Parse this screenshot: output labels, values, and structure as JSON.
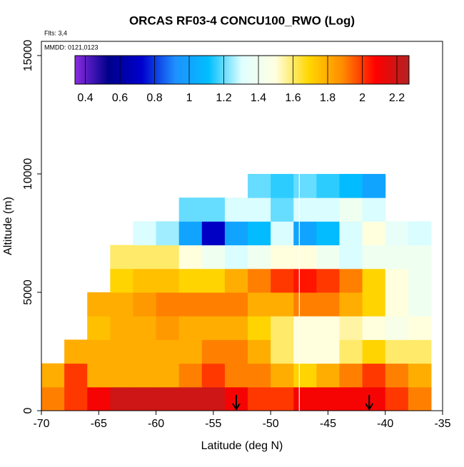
{
  "chart_data": {
    "type": "heatmap",
    "title": "ORCAS RF03-4 CONCU100_RWO (Log)",
    "notes": [
      "Flts: 3,4",
      "MMDD: 0121,0123"
    ],
    "xlabel": "Latitude (deg N)",
    "ylabel": "Altitude (m)",
    "xlim": [
      -70,
      -35
    ],
    "xticks": [
      -70,
      -65,
      -60,
      -55,
      -50,
      -45,
      -40,
      -35
    ],
    "ylim": [
      0,
      15600
    ],
    "yticks": [
      0,
      5000,
      10000,
      15000
    ],
    "x_edges": [
      -70,
      -68,
      -66,
      -64,
      -62,
      -60,
      -58,
      -56,
      -54,
      -52,
      -50,
      -48,
      -46,
      -44,
      -42,
      -40,
      -38,
      -36
    ],
    "y_edges": [
      0,
      1000,
      2000,
      3000,
      4000,
      5000,
      6000,
      7000,
      8000,
      9000,
      10000
    ],
    "z": [
      [
        1.9,
        2.0,
        2.1,
        2.2,
        2.2,
        2.2,
        2.2,
        2.2,
        2.1,
        2.0,
        2.0,
        2.1,
        2.1,
        2.1,
        2.1,
        2.0,
        1.9
      ],
      [
        1.8,
        2.0,
        1.8,
        1.8,
        1.8,
        1.8,
        1.9,
        2.0,
        1.9,
        1.9,
        1.8,
        1.7,
        1.8,
        1.9,
        2.0,
        1.9,
        1.8
      ],
      [
        null,
        1.8,
        1.8,
        1.8,
        1.8,
        1.8,
        1.8,
        1.9,
        1.9,
        1.8,
        1.6,
        1.5,
        1.5,
        1.6,
        1.7,
        1.6,
        1.6
      ],
      [
        null,
        null,
        1.75,
        1.8,
        1.8,
        1.85,
        1.8,
        1.8,
        1.8,
        1.7,
        1.6,
        1.5,
        1.5,
        1.55,
        1.5,
        1.45,
        1.5
      ],
      [
        null,
        null,
        1.8,
        1.8,
        1.85,
        1.9,
        1.9,
        1.9,
        1.9,
        1.8,
        1.8,
        1.9,
        1.9,
        1.8,
        1.7,
        1.5,
        1.4
      ],
      [
        null,
        null,
        null,
        1.7,
        1.75,
        1.75,
        1.7,
        1.7,
        1.8,
        1.9,
        2.0,
        2.05,
        2.0,
        1.9,
        1.7,
        1.5,
        1.4
      ],
      [
        null,
        null,
        null,
        1.6,
        1.6,
        1.6,
        1.5,
        1.4,
        1.3,
        1.4,
        1.5,
        1.5,
        1.4,
        1.3,
        1.4,
        1.4,
        1.4
      ],
      [
        null,
        null,
        null,
        null,
        1.3,
        1.25,
        1.0,
        0.7,
        1.0,
        1.1,
        1.3,
        1.0,
        1.1,
        1.3,
        1.5,
        1.35,
        1.3
      ],
      [
        null,
        null,
        null,
        null,
        null,
        null,
        1.2,
        1.2,
        1.3,
        1.3,
        1.2,
        1.3,
        1.3,
        1.4,
        1.3,
        null,
        null
      ],
      [
        null,
        null,
        null,
        null,
        null,
        null,
        null,
        null,
        null,
        1.2,
        1.15,
        1.2,
        1.15,
        1.1,
        1.0,
        null,
        null
      ]
    ],
    "colorbar": {
      "zlim": [
        0.34,
        2.27
      ],
      "ticks": [
        0.4,
        0.6,
        0.8,
        1.0,
        1.2,
        1.4,
        1.6,
        1.8,
        2.0,
        2.2
      ],
      "colors": [
        "#8a2be2",
        "#00008b",
        "#0000cd",
        "#1e90ff",
        "#00bfff",
        "#e0ffff",
        "#ffffe0",
        "#ffd700",
        "#ff8c00",
        "#ff0000",
        "#b22222"
      ]
    },
    "divider_x": -47.5,
    "arrows_x": [
      -53,
      -41.4
    ]
  }
}
